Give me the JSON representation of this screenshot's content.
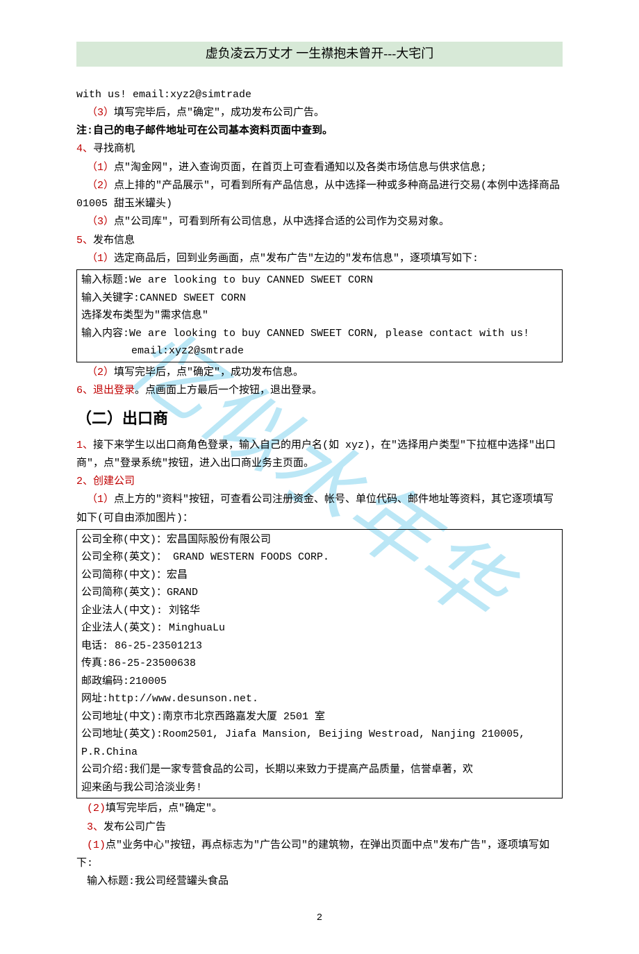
{
  "header": {
    "title": "虚负凌云万丈才  一生襟抱未曾开---大宅门"
  },
  "watermark": "忆似水年华",
  "body": {
    "l01": "with us!  email:xyz2@simtrade",
    "l02a": "（3）",
    "l02b": "填写完毕后，点\"确定\"，成功发布公司广告。",
    "l03": "注:自己的电子邮件地址可在公司基本资料页面中查到。",
    "l04a": "4、",
    "l04b": "寻找商机",
    "l05a": "（1）",
    "l05b": "点\"淘金网\"，进入查询页面，在首页上可查看通知以及各类市场信息与供求信息;",
    "l06a": "（2）",
    "l06b": "点上排的\"产品展示\"，可看到所有产品信息，从中选择一种或多种商品进行交易(本例中选择商品 01005 甜玉米罐头)",
    "l07a": "（3）",
    "l07b": "点\"公司库\"，可看到所有公司信息，从中选择合适的公司作为交易对象。",
    "l08a": "5、",
    "l08b": "发布信息",
    "l09a": "（1）",
    "l09b": "选定商品后，回到业务画面，点\"发布广告\"左边的\"发布信息\"，逐项填写如下:"
  },
  "box1": {
    "l1": "输入标题:We are looking to buy CANNED SWEET CORN",
    "l2": "输入关键字:CANNED SWEET CORN",
    "l3": "选择发布类型为\"需求信息\"",
    "l4": "输入内容:We are looking to buy CANNED SWEET CORN, please contact with us!",
    "l5": "        email:xyz2@smtrade"
  },
  "body2": {
    "l10a": "（2）",
    "l10b": "填写完毕后，点\"确定\"，成功发布信息。",
    "l11a": "6、退出登录",
    "l11b": "。点画面上方最后一个按钮，退出登录。"
  },
  "h2": "（二）出口商",
  "body3": {
    "l12a": "1、",
    "l12b": "接下来学生以出口商角色登录，输入自己的用户名(如 xyz)，在\"选择用户类型\"下拉框中选择\"出口商\"，点\"登录系统\"按钮，进入出口商业务主页面。",
    "l13": "2、创建公司",
    "l14a": "（1）",
    "l14b": "点上方的\"资料\"按钮，可查看公司注册资金、帐号、单位代码、邮件地址等资料，其它逐项填写如下(可自由添加图片)："
  },
  "box2": {
    "l1": "公司全称(中文)：宏昌国际股份有限公司",
    "l2": "公司全称(英文)：  GRAND WESTERN FOODS CORP.",
    "l3": "公司简称(中文)：宏昌",
    "l4": "公司简称(英文)：GRAND",
    "l5": "企业法人(中文): 刘铭华",
    "l6": "企业法人(英文): MinghuaLu",
    "l7": "电话: 86-25-23501213",
    "l8": "传真:86-25-23500638",
    "l9": "邮政编码:210005",
    "l10": "网址:http://www.desunson.net.",
    "l11": "公司地址(中文):南京市北京西路嘉发大厦 2501 室",
    "l12": "公司地址(英文):Room2501, Jiafa Mansion, Beijing Westroad, Nanjing 210005, P.R.China",
    "l13": "公司介绍:我们是一家专营食品的公司，长期以来致力于提高产品质量，信誉卓著，欢",
    "l14": "迎来函与我公司洽淡业务!"
  },
  "body4": {
    "l15a": "(2)",
    "l15b": "填写完毕后，点\"确定\"。",
    "l16a": "3、",
    "l16b": "发布公司广告",
    "l17a": "(1)",
    "l17b": "点\"业务中心\"按钮，再点标志为\"广告公司\"的建筑物，在弹出页面中点\"发布广告\"，逐项填写如下:",
    "l18": "输入标题:我公司经营罐头食品"
  },
  "page_number": "2"
}
